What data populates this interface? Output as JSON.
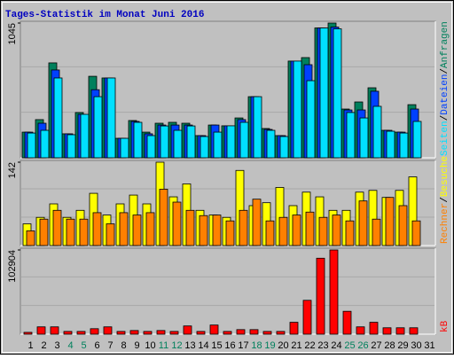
{
  "chart_data": [
    {
      "type": "bar",
      "title": "Tages-Statistik im Monat Juni 2016",
      "legend_separator": "/",
      "ylim": [
        0,
        1045
      ],
      "yticks": [
        1045
      ],
      "series": [
        {
          "name": "Anfragen",
          "color": "#00805c",
          "values": [
            199,
            296,
            736,
            186,
            351,
            632,
            619,
            151,
            289,
            199,
            268,
            275,
            268,
            172,
            254,
            248,
            309,
            474,
            227,
            172,
            750,
            777,
            1007,
            1045,
            378,
            433,
            543,
            213,
            199,
            412,
            null
          ]
        },
        {
          "name": "Dateien",
          "color": "#0040ff",
          "values": [
            199,
            268,
            681,
            186,
            337,
            528,
            619,
            151,
            282,
            186,
            254,
            254,
            254,
            172,
            254,
            248,
            296,
            474,
            220,
            172,
            750,
            722,
            1007,
            1014,
            371,
            371,
            516,
            213,
            199,
            378,
            null
          ]
        },
        {
          "name": "Seiten",
          "color": "#00e0ff",
          "values": [
            192,
            213,
            619,
            179,
            337,
            474,
            619,
            151,
            275,
            172,
            247,
            213,
            247,
            165,
            199,
            248,
            275,
            474,
            213,
            165,
            750,
            598,
            1007,
            1000,
            351,
            309,
            399,
            206,
            192,
            282,
            null
          ]
        }
      ]
    },
    {
      "type": "bar",
      "ylim": [
        0,
        142
      ],
      "yticks": [
        142
      ],
      "series": [
        {
          "name": "Besuche",
          "color": "#ffff00",
          "values": [
            37,
            48,
            71,
            48,
            60,
            89,
            52,
            71,
            86,
            71,
            142,
            83,
            105,
            60,
            52,
            48,
            128,
            68,
            73,
            99,
            68,
            91,
            83,
            60,
            60,
            91,
            94,
            82,
            94,
            117,
            null
          ]
        },
        {
          "name": "Rechner",
          "color": "#ff8000",
          "values": [
            25,
            45,
            60,
            45,
            45,
            56,
            37,
            56,
            52,
            56,
            96,
            74,
            60,
            51,
            52,
            42,
            60,
            79,
            42,
            48,
            52,
            57,
            48,
            52,
            42,
            76,
            45,
            82,
            68,
            42,
            null
          ]
        }
      ]
    },
    {
      "type": "bar",
      "ylim": [
        0,
        102904
      ],
      "yticks": [
        102904
      ],
      "series": [
        {
          "name": "kB",
          "color": "#ff0000",
          "values": [
            2237,
            8948,
            8948,
            3356,
            3356,
            6711,
            8948,
            3356,
            4474,
            3356,
            4474,
            3356,
            10067,
            3356,
            11185,
            3356,
            5593,
            5593,
            3356,
            3356,
            14541,
            41385,
            92836,
            102904,
            27963,
            8948,
            14541,
            7830,
            7830,
            7830,
            null
          ]
        }
      ],
      "categories": [
        "1",
        "2",
        "3",
        "4",
        "5",
        "6",
        "7",
        "8",
        "9",
        "10",
        "11",
        "12",
        "13",
        "14",
        "15",
        "16",
        "17",
        "18",
        "19",
        "20",
        "21",
        "22",
        "23",
        "24",
        "25",
        "26",
        "27",
        "28",
        "29",
        "30",
        "31"
      ],
      "category_colors": [
        "#000",
        "#000",
        "#000",
        "#00805c",
        "#00805c",
        "#000",
        "#000",
        "#000",
        "#000",
        "#000",
        "#00805c",
        "#00805c",
        "#000",
        "#000",
        "#000",
        "#000",
        "#000",
        "#00805c",
        "#00805c",
        "#000",
        "#000",
        "#000",
        "#000",
        "#000",
        "#00805c",
        "#00805c",
        "#000",
        "#000",
        "#000",
        "#000",
        "#000"
      ]
    }
  ]
}
